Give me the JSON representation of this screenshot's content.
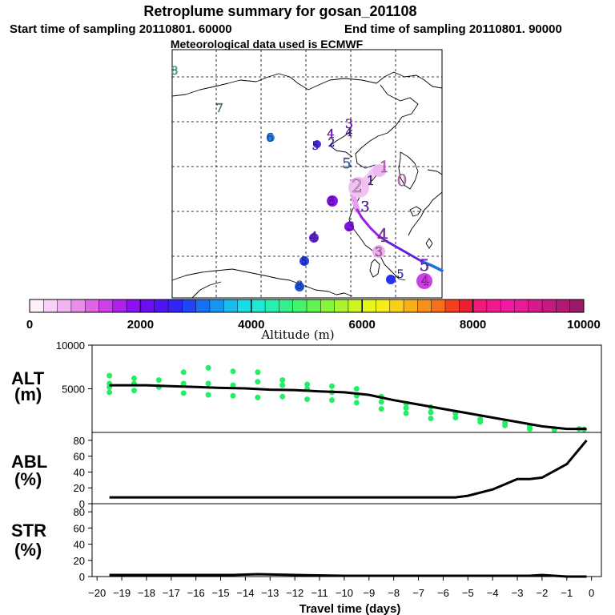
{
  "header": {
    "title": "Retroplume summary for gosan_201108",
    "start_label": "Start time of sampling 20110801. 60000",
    "end_label": "End time of sampling 20110801. 90000",
    "met_label": "Meteorological data used is ECMWF"
  },
  "colorbar": {
    "tick_labels": [
      "0",
      "2000",
      "4000",
      "6000",
      "8000",
      "10000"
    ],
    "label": "Altitude (m)",
    "colors": [
      "#fdf0fd",
      "#f7d2f8",
      "#f1b4f3",
      "#e98de9",
      "#df66e3",
      "#cc40e6",
      "#ad22ea",
      "#8c10f0",
      "#6c0ef2",
      "#4f14f2",
      "#3324f4",
      "#1f45f4",
      "#1670f2",
      "#1696f0",
      "#17bcea",
      "#18dce6",
      "#1fe9d1",
      "#28eeae",
      "#32f08a",
      "#45f26b",
      "#63f352",
      "#86f43c",
      "#a9f42c",
      "#caf51f",
      "#e6f51a",
      "#f6ec1a",
      "#f8d01a",
      "#f8b01a",
      "#f88f1a",
      "#f66f1a",
      "#f2401e",
      "#ea1f34",
      "#ef1a7a",
      "#f01a8e",
      "#f01aa2",
      "#e81a98",
      "#d61a8c",
      "#c41a80",
      "#b01a74",
      "#9a1a68"
    ]
  },
  "map": {
    "day_markers": [
      {
        "label": "8",
        "color": "#2ee08c"
      },
      {
        "label": "7",
        "color": "#1aa0a0"
      },
      {
        "label": "6",
        "color": "#1a70e0"
      },
      {
        "label": "5",
        "color": "#4a2ae8"
      },
      {
        "label": "4",
        "color": "#8010f0"
      },
      {
        "label": "2",
        "color": "#6020d0"
      },
      {
        "label": "3",
        "color": "#9020e8"
      },
      {
        "label": "4",
        "color": "#6020d0"
      },
      {
        "label": "1",
        "color": "#e070e0"
      },
      {
        "label": "0",
        "color": "#e070e0"
      },
      {
        "label": "1",
        "color": "#5a30c0"
      },
      {
        "label": "2",
        "color": "#e8b0ec"
      },
      {
        "label": "3",
        "color": "#7a20d0"
      },
      {
        "label": "8",
        "color": "#8a14f0"
      },
      {
        "label": "3",
        "color": "#9020e8"
      },
      {
        "label": "4",
        "color": "#a030f0"
      },
      {
        "label": "5",
        "color": "#9a20e8"
      },
      {
        "label": "3",
        "color": "#e070e0"
      },
      {
        "label": "4",
        "color": "#6a2ae0"
      },
      {
        "label": "5",
        "color": "#2a40f0"
      },
      {
        "label": "5",
        "color": "#3a40f0"
      },
      {
        "label": "8",
        "color": "#2a50f0"
      },
      {
        "label": "4",
        "color": "#cc40e6"
      },
      {
        "label": "5",
        "color": "#2a6ae8"
      }
    ]
  },
  "panels": {
    "alt_label": "ALT",
    "alt_unit": "(m)",
    "abl_label": "ABL",
    "abl_unit": "(%)",
    "str_label": "STR",
    "str_unit": "(%)"
  },
  "chart_data": [
    {
      "type": "line",
      "title": "ALT (m)",
      "ylabel": "ALT (m)",
      "xlabel": "Travel time (days)",
      "x_ticks": [
        -20,
        -19,
        -18,
        -17,
        -16,
        -15,
        -14,
        -13,
        -12,
        -11,
        -10,
        -9,
        -8,
        -7,
        -6,
        -5,
        -4,
        -3,
        -2,
        -1,
        0
      ],
      "ylim": [
        0,
        10000
      ],
      "y_ticks": [
        5000,
        10000
      ],
      "series": [
        {
          "name": "mean altitude",
          "color": "#000000",
          "x": [
            -19.5,
            -18,
            -17,
            -16,
            -15,
            -14,
            -13,
            -12,
            -11,
            -10,
            -9,
            -8,
            -7,
            -6,
            -5,
            -4,
            -3,
            -2,
            -1,
            -0.2
          ],
          "values": [
            5400,
            5400,
            5300,
            5200,
            5100,
            5050,
            4900,
            4850,
            4700,
            4600,
            4300,
            3700,
            3200,
            2700,
            2200,
            1700,
            1200,
            700,
            400,
            400
          ]
        },
        {
          "name": "plume particles",
          "color": "#22ee66",
          "x": [
            -19.5,
            -19.5,
            -19.5,
            -19.5,
            -18.5,
            -18.5,
            -18.5,
            -17.5,
            -17.5,
            -16.5,
            -16.5,
            -16.5,
            -15.5,
            -15.5,
            -15.5,
            -14.5,
            -14.5,
            -14.5,
            -13.5,
            -13.5,
            -13.5,
            -12.5,
            -12.5,
            -12.5,
            -11.5,
            -11.5,
            -11.5,
            -10.5,
            -10.5,
            -10.5,
            -9.5,
            -9.5,
            -9.5,
            -8.5,
            -8.5,
            -8.5,
            -7.5,
            -7.5,
            -7.5,
            -6.5,
            -6.5,
            -6.5,
            -5.5,
            -5.5,
            -4.5,
            -4.5,
            -3.5,
            -3.5,
            -2.5,
            -2.5,
            -1.5,
            -1.5,
            -0.5,
            -0.3
          ],
          "values": [
            6500,
            5600,
            5200,
            4600,
            6200,
            5600,
            4800,
            6000,
            5200,
            6900,
            5600,
            4500,
            7400,
            5600,
            4300,
            7000,
            5400,
            4200,
            6900,
            5800,
            4000,
            6000,
            5400,
            4100,
            5500,
            5000,
            3800,
            5300,
            4600,
            3700,
            5000,
            4200,
            3400,
            4100,
            3500,
            2700,
            3300,
            2800,
            2200,
            2900,
            2300,
            1600,
            2200,
            1700,
            1500,
            1200,
            1100,
            800,
            700,
            400,
            400,
            300,
            400,
            350
          ]
        }
      ]
    },
    {
      "type": "line",
      "title": "ABL (%)",
      "ylabel": "ABL (%)",
      "ylim": [
        0,
        90
      ],
      "y_ticks": [
        0,
        20,
        40,
        60,
        80
      ],
      "x": [
        -19.5,
        -18,
        -16,
        -14,
        -12,
        -10,
        -8,
        -7,
        -6,
        -5.5,
        -5,
        -4,
        -3,
        -2.5,
        -2,
        -1,
        -0.2
      ],
      "series": [
        {
          "name": "ABL fraction",
          "color": "#000000",
          "values": [
            8,
            8,
            8,
            8,
            8,
            8,
            8,
            8,
            8,
            8,
            10,
            18,
            31,
            31,
            33,
            50,
            80
          ]
        }
      ]
    },
    {
      "type": "line",
      "title": "STR (%)",
      "ylabel": "STR (%)",
      "ylim": [
        0,
        90
      ],
      "y_ticks": [
        0,
        20,
        40,
        60,
        80
      ],
      "x": [
        -19.5,
        -18,
        -16,
        -14.5,
        -13.5,
        -12,
        -10,
        -8,
        -6,
        -4,
        -2.5,
        -2,
        -1,
        -0.2
      ],
      "series": [
        {
          "name": "stratospheric fraction",
          "color": "#000000",
          "values": [
            2,
            2,
            2,
            2,
            3,
            2,
            1,
            1,
            1,
            1,
            1,
            2,
            0,
            0
          ]
        }
      ]
    }
  ]
}
